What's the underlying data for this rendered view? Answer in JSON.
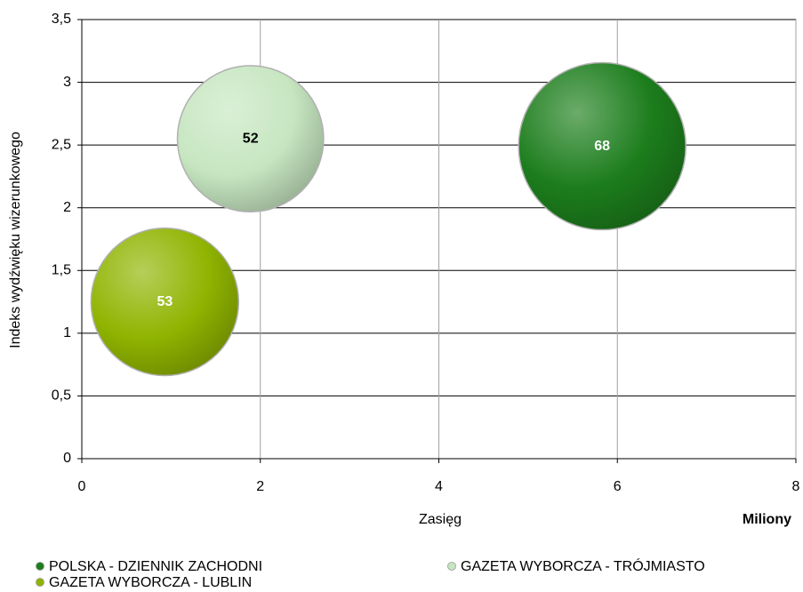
{
  "chart_data": {
    "type": "bubble",
    "x_label": "Zasięg",
    "y_label": "Indeks wydźwięku wizerunkowego",
    "x_unit_label": "Miliony",
    "xlim": [
      0,
      8
    ],
    "xticks": [
      0,
      2,
      4,
      6,
      8
    ],
    "ylim": [
      0,
      3.5
    ],
    "yticks": [
      0,
      {
        "value": 0.5,
        "label": "0,5"
      },
      1,
      {
        "value": 1.5,
        "label": "1,5"
      },
      2,
      {
        "value": 2.5,
        "label": "2,5"
      },
      3,
      {
        "value": 3.5,
        "label": "3,5"
      }
    ],
    "grid": true,
    "legend": "bottom",
    "series": [
      {
        "name": "POLSKA - DZIENNIK ZACHODNI",
        "color": "#1c7d1c",
        "x": [
          5.83
        ],
        "y": [
          2.49
        ],
        "size": [
          68
        ]
      },
      {
        "name": "GAZETA WYBORCZA - TRÓJMIASTO",
        "color": "#c6e6c0",
        "x": [
          1.89
        ],
        "y": [
          2.55
        ],
        "size": [
          52
        ]
      },
      {
        "name": "GAZETA WYBORCZA - LUBLIN",
        "color": "#8fb400",
        "x": [
          0.93
        ],
        "y": [
          1.25
        ],
        "size": [
          53
        ]
      }
    ]
  }
}
